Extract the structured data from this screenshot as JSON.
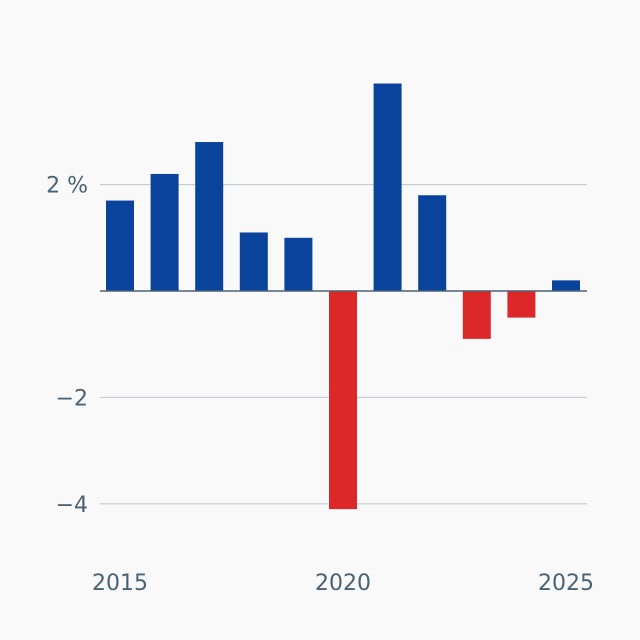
{
  "chart_data": {
    "type": "bar",
    "title": "",
    "xlabel": "",
    "ylabel": "",
    "categories": [
      "2015",
      "2016",
      "2017",
      "2018",
      "2019",
      "2020",
      "2021",
      "2022",
      "2023",
      "2024",
      "2025"
    ],
    "values": [
      1.7,
      2.2,
      2.8,
      1.1,
      1.0,
      -4.1,
      3.9,
      1.8,
      -0.9,
      -0.5,
      0.2
    ],
    "ylim": [
      -4.8,
      4.3
    ],
    "y_ticks": [
      {
        "value": 2,
        "label": "2 %"
      },
      {
        "value": -2,
        "label": "−2"
      },
      {
        "value": -4,
        "label": "−4"
      }
    ],
    "x_ticks": [
      {
        "value": "2015",
        "label": "2015"
      },
      {
        "value": "2020",
        "label": "2020"
      },
      {
        "value": "2025",
        "label": "2025"
      }
    ],
    "grid": true,
    "colors": {
      "positive": "#0a439c",
      "negative": "#dc2828"
    }
  }
}
